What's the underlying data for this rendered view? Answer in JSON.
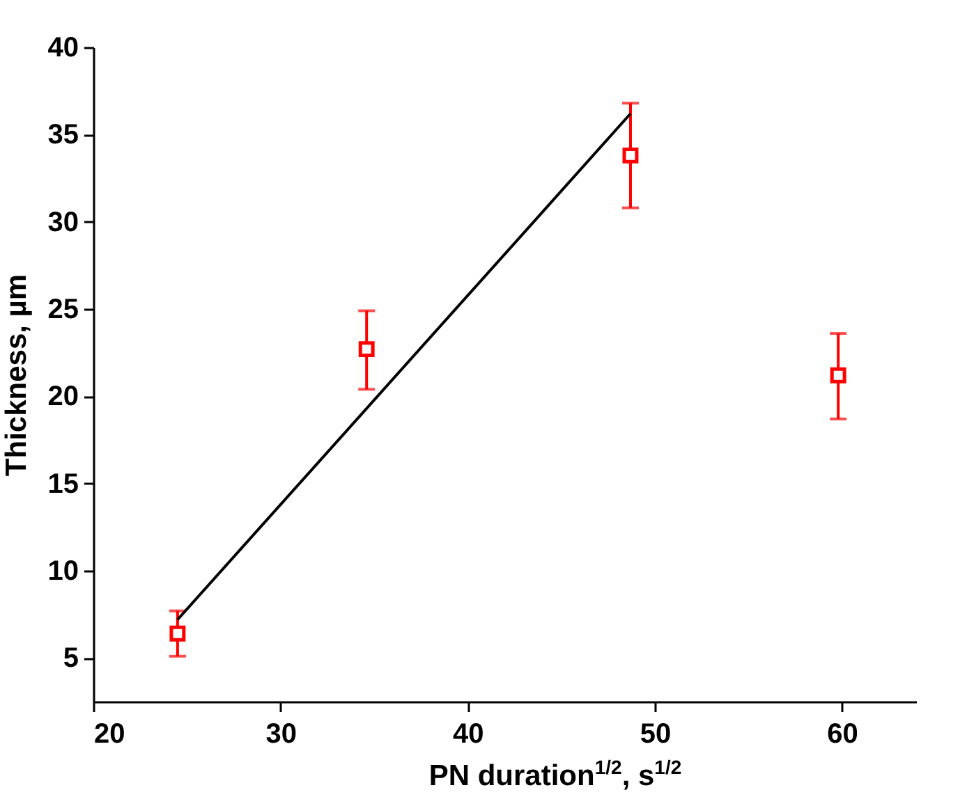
{
  "chart_data": {
    "type": "scatter",
    "xlabel": "PN duration$^{1/2}$, s$^{1/2}$",
    "ylabel": "Thickness, µm",
    "xlim": [
      20,
      64
    ],
    "ylim": [
      2.5,
      40
    ],
    "xticks": [
      20,
      30,
      40,
      50,
      60
    ],
    "yticks": [
      5,
      10,
      15,
      20,
      25,
      30,
      35,
      40
    ],
    "series": [
      {
        "color": "#ff0000",
        "marker": "square",
        "x": [
          24.5,
          34.6,
          48.7,
          59.8
        ],
        "values": [
          6.4,
          22.7,
          33.8,
          21.2
        ],
        "errors": [
          [
            5.1,
            7.7
          ],
          [
            20.4,
            24.9
          ],
          [
            30.8,
            36.8
          ],
          [
            18.7,
            23.6
          ]
        ]
      },
      {
        "type": "line",
        "color": "#000000",
        "line_style": "solid",
        "x": [
          24.5,
          48.7
        ],
        "values": [
          7.2,
          36.2
        ]
      }
    ]
  }
}
